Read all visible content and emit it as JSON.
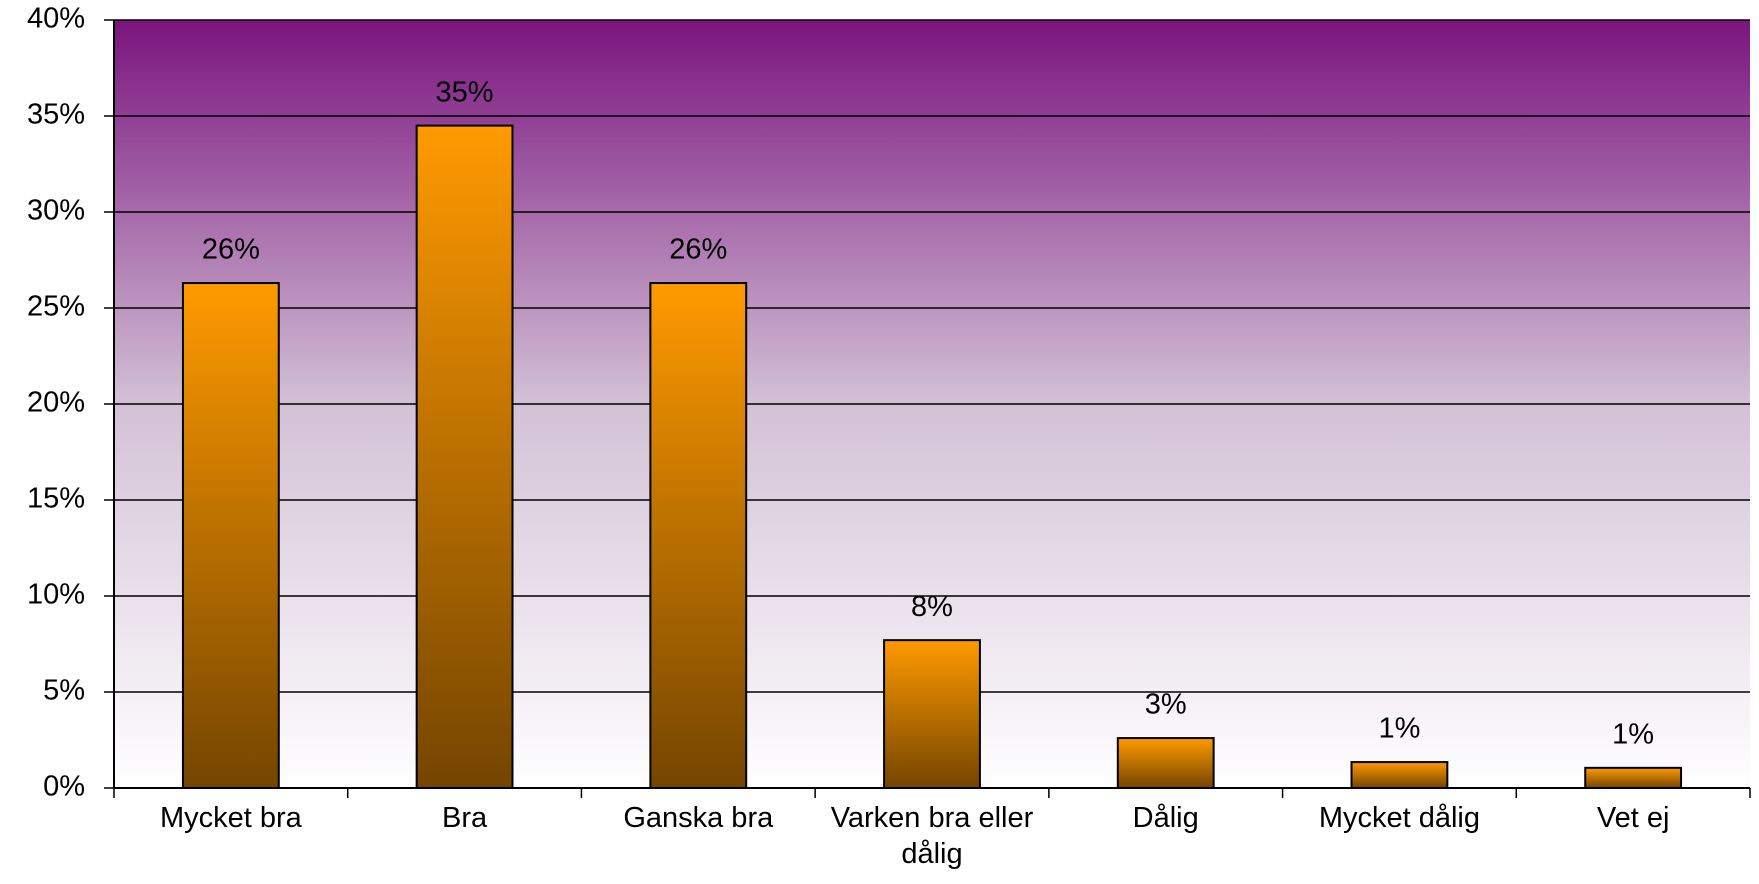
{
  "chart_data": {
    "type": "bar",
    "categories": [
      "Mycket bra",
      "Bra",
      "Ganska bra",
      "Varken bra eller dålig",
      "Dålig",
      "Mycket dålig",
      "Vet ej"
    ],
    "values": [
      26.3,
      34.5,
      26.3,
      7.7,
      2.6,
      1.35,
      1.05
    ],
    "value_labels": [
      "26%",
      "35%",
      "26%",
      "8%",
      "3%",
      "1%",
      "1%"
    ],
    "color": "#ff9900",
    "ylim": [
      0,
      40
    ],
    "yticks": [
      {
        "value": 0,
        "label": "0%"
      },
      {
        "value": 5,
        "label": "5%"
      },
      {
        "value": 10,
        "label": "10%"
      },
      {
        "value": 15,
        "label": "15%"
      },
      {
        "value": 20,
        "label": "20%"
      },
      {
        "value": 25,
        "label": "25%"
      },
      {
        "value": 30,
        "label": "30%"
      },
      {
        "value": 35,
        "label": "35%"
      },
      {
        "value": 40,
        "label": "40%"
      }
    ],
    "grid": true
  }
}
